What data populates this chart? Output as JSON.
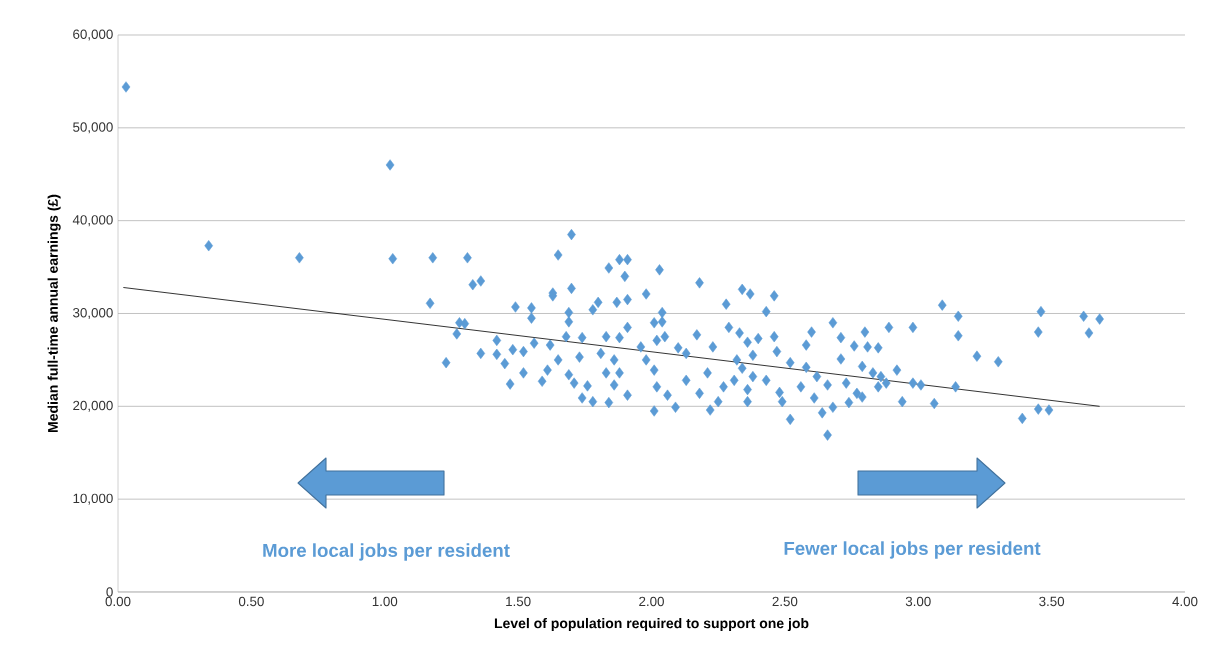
{
  "chart_data": {
    "type": "scatter",
    "xlabel": "Level of population required to support one job",
    "ylabel": "Median full-time annual earnings (£)",
    "annotations": [
      "More local jobs per resident",
      "Fewer local jobs per resident"
    ],
    "xlim": [
      0,
      4
    ],
    "ylim": [
      0,
      60000
    ],
    "xticks": [
      {
        "value": 0,
        "label": "0.00"
      },
      {
        "value": 0.5,
        "label": "0.50"
      },
      {
        "value": 1,
        "label": "1.00"
      },
      {
        "value": 1.5,
        "label": "1.50"
      },
      {
        "value": 2,
        "label": "2.00"
      },
      {
        "value": 2.5,
        "label": "2.50"
      },
      {
        "value": 3,
        "label": "3.00"
      },
      {
        "value": 3.5,
        "label": "3.50"
      },
      {
        "value": 4,
        "label": "4.00"
      }
    ],
    "yticks": [
      0,
      {
        "value": 10000,
        "label": "10,000"
      },
      {
        "value": 20000,
        "label": "20,000"
      },
      {
        "value": 30000,
        "label": "30,000"
      },
      {
        "value": 40000,
        "label": "40,000"
      },
      {
        "value": 50000,
        "label": "50,000"
      },
      {
        "value": 60000,
        "label": "60,000"
      }
    ],
    "grid": "y",
    "marker": "diamond",
    "series": [
      {
        "color": "#5b9bd5",
        "x": [
          0.03,
          0.34,
          0.68,
          1.02,
          1.03,
          1.18,
          1.31,
          1.33,
          1.36,
          1.17,
          1.28,
          1.3,
          1.27,
          1.23,
          1.42,
          1.42,
          1.36,
          1.49,
          1.48,
          1.45,
          1.47,
          1.55,
          1.55,
          1.52,
          1.52,
          1.59,
          1.61,
          1.65,
          1.7,
          1.7,
          1.63,
          1.63,
          1.69,
          1.69,
          1.68,
          1.56,
          1.62,
          1.65,
          1.69,
          1.71,
          1.73,
          1.74,
          1.76,
          1.74,
          1.78,
          1.78,
          1.8,
          1.84,
          1.88,
          1.91,
          1.9,
          1.87,
          1.91,
          1.91,
          1.83,
          1.88,
          1.81,
          1.86,
          1.83,
          1.88,
          1.86,
          1.84,
          1.91,
          1.98,
          2.03,
          2.01,
          2.04,
          2.04,
          2.02,
          2.05,
          1.96,
          1.98,
          2.01,
          2.02,
          2.06,
          2.01,
          2.09,
          2.1,
          2.13,
          2.18,
          2.17,
          2.23,
          2.21,
          2.13,
          2.18,
          2.22,
          2.25,
          2.34,
          2.37,
          2.46,
          2.28,
          2.43,
          2.29,
          2.33,
          2.36,
          2.4,
          2.46,
          2.47,
          2.38,
          2.32,
          2.34,
          2.27,
          2.31,
          2.38,
          2.43,
          2.36,
          2.36,
          2.52,
          2.48,
          2.49,
          2.52,
          2.56,
          2.6,
          2.58,
          2.58,
          2.62,
          2.61,
          2.66,
          2.64,
          2.66,
          2.68,
          2.71,
          2.71,
          2.73,
          2.74,
          2.68,
          2.76,
          2.77,
          2.79,
          2.8,
          2.81,
          2.85,
          2.79,
          2.83,
          2.86,
          2.85,
          2.88,
          2.92,
          2.89,
          2.94,
          2.98,
          2.98,
          3.01,
          3.06,
          3.09,
          3.15,
          3.15,
          3.14,
          3.22,
          3.3,
          3.46,
          3.45,
          3.62,
          3.68,
          3.64,
          3.39,
          3.45,
          3.49
        ],
        "values": [
          54400,
          37300,
          36000,
          46000,
          35900,
          36000,
          36000,
          33100,
          33500,
          31100,
          29000,
          28900,
          27800,
          24700,
          27100,
          25600,
          25700,
          30700,
          26100,
          24600,
          22400,
          30600,
          29500,
          25900,
          23600,
          22700,
          23900,
          36300,
          38500,
          32700,
          31900,
          32200,
          30100,
          29100,
          27500,
          26800,
          26600,
          25000,
          23400,
          22500,
          25300,
          27400,
          22200,
          20900,
          20500,
          30400,
          31200,
          34900,
          35800,
          35800,
          34000,
          31200,
          31500,
          28500,
          27500,
          27400,
          25700,
          25000,
          23600,
          23600,
          22300,
          20400,
          21200,
          32100,
          34700,
          29000,
          30100,
          29100,
          27100,
          27500,
          26400,
          25000,
          23900,
          22100,
          21200,
          19500,
          19900,
          26300,
          25700,
          33300,
          27700,
          26400,
          23600,
          22800,
          21400,
          19600,
          20500,
          32600,
          32100,
          31900,
          31000,
          30200,
          28500,
          27900,
          26900,
          27300,
          27500,
          25900,
          25500,
          25000,
          24100,
          22100,
          22800,
          23200,
          22800,
          21800,
          20500,
          24700,
          21500,
          20500,
          18600,
          22100,
          28000,
          26600,
          24200,
          23200,
          20900,
          22300,
          19300,
          16900,
          29000,
          27400,
          25100,
          22500,
          20400,
          19900,
          26500,
          21400,
          24300,
          28000,
          26400,
          26300,
          21000,
          23600,
          23200,
          22100,
          22500,
          23900,
          28500,
          20500,
          28500,
          22500,
          22300,
          20300,
          30900,
          29700,
          27600,
          22100,
          25400,
          24800,
          30200,
          28000,
          29700,
          29400,
          27900,
          18700,
          19700,
          19600
        ]
      },
      {
        "type": "line",
        "color": "#000000",
        "marker": "none",
        "x": [
          0.02,
          3.68
        ],
        "values": [
          32800,
          20000
        ]
      }
    ]
  }
}
